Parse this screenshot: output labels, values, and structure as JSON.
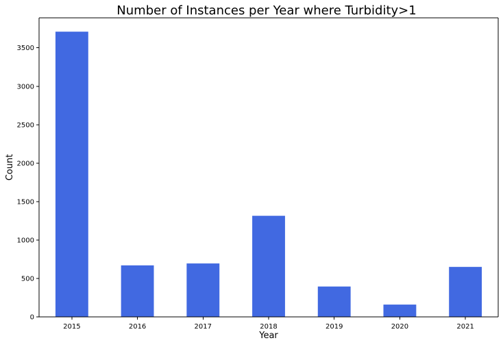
{
  "chart_data": {
    "type": "bar",
    "title": "Number of Instances per Year where Turbidity>1",
    "xlabel": "Year",
    "ylabel": "Count",
    "categories": [
      "2015",
      "2016",
      "2017",
      "2018",
      "2019",
      "2020",
      "2021"
    ],
    "values": [
      3710,
      670,
      695,
      1315,
      395,
      160,
      650
    ],
    "ylim": [
      0,
      3890
    ],
    "yticks": [
      0,
      500,
      1000,
      1500,
      2000,
      2500,
      3000,
      3500
    ],
    "grid": false,
    "legend": "none",
    "bar_color": "#4169E1"
  }
}
